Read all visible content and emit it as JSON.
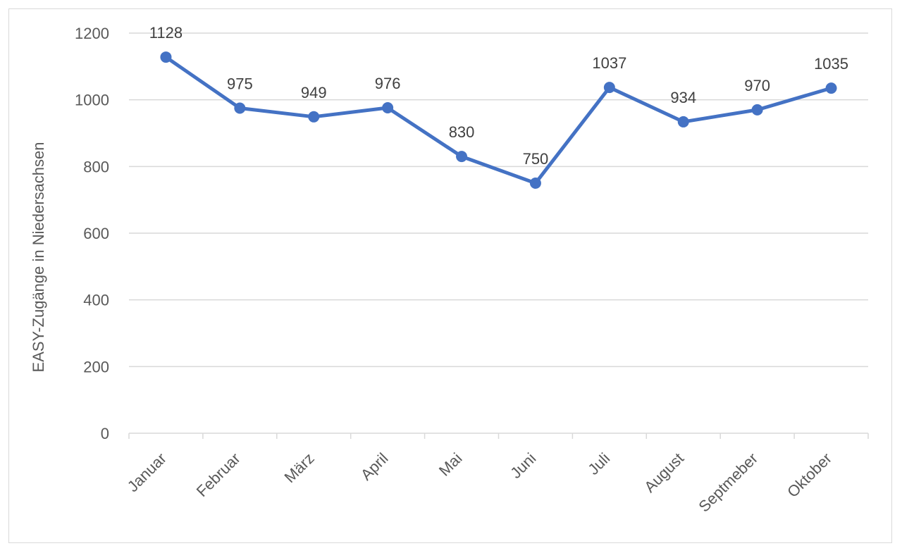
{
  "chart_data": {
    "type": "line",
    "title": "",
    "xlabel": "",
    "ylabel": "EASY-Zugänge in Niedersachsen",
    "categories": [
      "Januar",
      "Februar",
      "März",
      "April",
      "Mai",
      "Juni",
      "Juli",
      "August",
      "Septmeber",
      "Oktober"
    ],
    "series": [
      {
        "values": [
          1128,
          975,
          949,
          976,
          830,
          750,
          1037,
          934,
          970,
          1035
        ]
      }
    ],
    "ylim": [
      0,
      1200
    ],
    "yticks": [
      0,
      200,
      400,
      600,
      800,
      1000,
      1200
    ],
    "grid": true,
    "legend": "none",
    "data_labels": true,
    "series_color": "#4472C4",
    "grid_color": "#d9d9d9",
    "text_color": "#595959"
  }
}
